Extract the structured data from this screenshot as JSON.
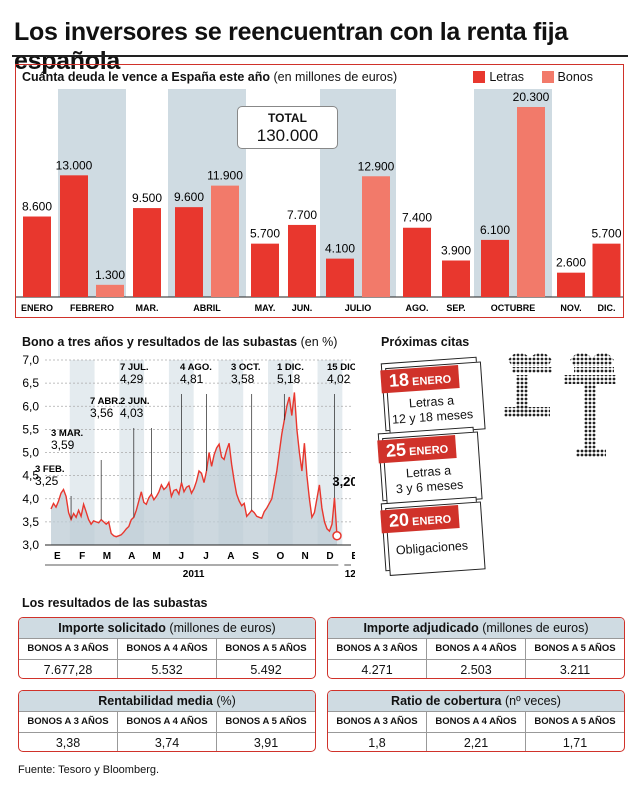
{
  "headline": "Los inversores se reencuentran con la renta fija española",
  "colors": {
    "letras": "#e8372e",
    "bonos": "#f27a6a",
    "accent": "#d0322a",
    "band": "#cfdbe2",
    "area": "#bccbd4"
  },
  "vencimientos": {
    "title": "Cuánta deuda le vence a España este año",
    "unit": "(en millones de euros)",
    "legend_letras": "Letras",
    "legend_bonos": "Bonos",
    "total_label": "TOTAL",
    "total_value": "130.000"
  },
  "bono": {
    "title": "Bono a tres años y resultados de las subastas",
    "unit": "(en %)",
    "year_label": "2011",
    "next_year_label": "12",
    "last_value": "3,20"
  },
  "citas": {
    "title": "Próximas citas",
    "items": [
      {
        "day": "18",
        "month": "ENERO",
        "line1": "Letras a",
        "line2": "12 y 18 meses"
      },
      {
        "day": "25",
        "month": "ENERO",
        "line1": "Letras a",
        "line2": "3 y 6 meses"
      },
      {
        "day": "20",
        "month": "ENERO",
        "line1": "Obligaciones",
        "line2": ""
      }
    ]
  },
  "subastas": {
    "title": "Los resultados de las subastas",
    "tables": [
      {
        "title": "Importe solicitado",
        "unit": "(millones de euros)",
        "headers": [
          "BONOS A 3 AÑOS",
          "BONOS A 4 AÑOS",
          "BONOS A 5 AÑOS"
        ],
        "values": [
          "7.677,28",
          "5.532",
          "5.492"
        ]
      },
      {
        "title": "Importe adjudicado",
        "unit": "(millones de euros)",
        "headers": [
          "BONOS A 3 AÑOS",
          "BONOS A 4 AÑOS",
          "BONOS A 5 AÑOS"
        ],
        "values": [
          "4.271",
          "2.503",
          "3.211"
        ]
      },
      {
        "title": "Rentabilidad media",
        "unit": "(%)",
        "headers": [
          "BONOS A 3 AÑOS",
          "BONOS A 4 AÑOS",
          "BONOS A 5 AÑOS"
        ],
        "values": [
          "3,38",
          "3,74",
          "3,91"
        ]
      },
      {
        "title": "Ratio de cobertura",
        "unit": "(nº veces)",
        "headers": [
          "BONOS A 3 AÑOS",
          "BONOS A 4 AÑOS",
          "BONOS A 5 AÑOS"
        ],
        "values": [
          "1,8",
          "2,21",
          "1,71"
        ]
      }
    ]
  },
  "source": "Fuente: Tesoro y Bloomberg.",
  "chart_data": [
    {
      "type": "bar",
      "title": "Cuánta deuda le vence a España este año",
      "unit": "(en millones de euros)",
      "categories": [
        "ENERO",
        "FEBRERO",
        "MAR.",
        "ABRIL",
        "MAY.",
        "JUN.",
        "JULIO",
        "AGO.",
        "SEP.",
        "OCTUBRE",
        "NOV.",
        "DIC."
      ],
      "labels": [
        "8.600",
        "13.000",
        "1.300",
        "9.500",
        "9.600",
        "11.900",
        "5.700",
        "7.700",
        "4.100",
        "12.900",
        "7.400",
        "3.900",
        "6.100",
        "20.300",
        "2.600",
        "5.700"
      ],
      "series": [
        {
          "name": "Letras",
          "values": [
            8600,
            13000,
            9500,
            9600,
            5700,
            7700,
            4100,
            7400,
            3900,
            6100,
            2600,
            5700
          ]
        },
        {
          "name": "Bonos",
          "values": [
            0,
            1300,
            0,
            11900,
            0,
            0,
            12900,
            0,
            0,
            20300,
            0,
            0
          ]
        }
      ],
      "ylim": [
        0,
        21000
      ],
      "legend": "top-right",
      "total": 130000
    },
    {
      "type": "line",
      "title": "Bono a tres años y resultados de las subastas",
      "unit": "(en %)",
      "ylim": [
        3.0,
        7.0
      ],
      "yticks": [
        "3,0",
        "3,5",
        "4,0",
        "4,5",
        "5,0",
        "5,5",
        "6,0",
        "6,5",
        "7,0"
      ],
      "xticks": [
        "E",
        "F",
        "M",
        "A",
        "M",
        "J",
        "J",
        "A",
        "S",
        "O",
        "N",
        "D",
        "E"
      ],
      "series": [
        {
          "values": [
            3.78,
            3.9,
            3.82,
            3.95,
            4.12,
            4.2,
            4.05,
            3.7,
            3.55,
            3.68,
            3.6,
            3.75,
            3.62,
            3.88,
            3.72,
            3.55,
            3.45,
            3.52,
            3.5,
            3.48,
            3.55,
            3.5,
            3.45,
            3.5,
            3.25,
            3.2,
            3.18,
            3.2,
            3.22,
            3.28,
            3.35,
            3.4,
            3.55,
            3.6,
            3.75,
            3.95,
            4.15,
            3.92,
            3.88,
            4.02,
            4.1,
            3.98,
            4.05,
            4.15,
            4.3,
            4.2,
            4.25,
            4.35,
            4.05,
            4.18,
            4.2,
            4.1,
            4.35,
            4.15,
            4.25,
            4.28,
            4.12,
            4.22,
            4.38,
            4.6,
            4.55,
            4.35,
            4.6,
            5.0,
            4.7,
            4.95,
            5.1,
            5.18,
            4.9,
            4.85,
            5.05,
            5.2,
            4.75,
            4.4,
            4.1,
            3.95,
            3.85,
            3.9,
            3.62,
            3.68,
            3.75,
            3.7,
            3.62,
            3.6,
            3.58,
            3.72,
            3.8,
            3.9,
            4.0,
            4.3,
            4.6,
            5.0,
            5.4,
            5.7,
            6.0,
            6.2,
            5.8,
            6.3,
            5.5,
            5.0,
            4.6,
            5.2,
            4.5,
            4.0,
            3.6,
            3.7,
            4.0,
            4.3,
            3.8,
            3.5,
            3.35,
            3.3,
            3.45,
            4.02,
            3.2
          ]
        }
      ],
      "annotations": [
        {
          "date": "3 FEB.",
          "value": "3,25"
        },
        {
          "date": "3 MAR.",
          "value": "3,59"
        },
        {
          "date": "7 ABR.",
          "value": "3,56"
        },
        {
          "date": "2 JUN.",
          "value": "4,03"
        },
        {
          "date": "7 JUL.",
          "value": "4,29"
        },
        {
          "date": "4 AGO.",
          "value": "4,81"
        },
        {
          "date": "3 OCT.",
          "value": "3,58"
        },
        {
          "date": "1 DIC.",
          "value": "5,18"
        },
        {
          "date": "15 DIC.",
          "value": "4,02"
        }
      ]
    }
  ]
}
